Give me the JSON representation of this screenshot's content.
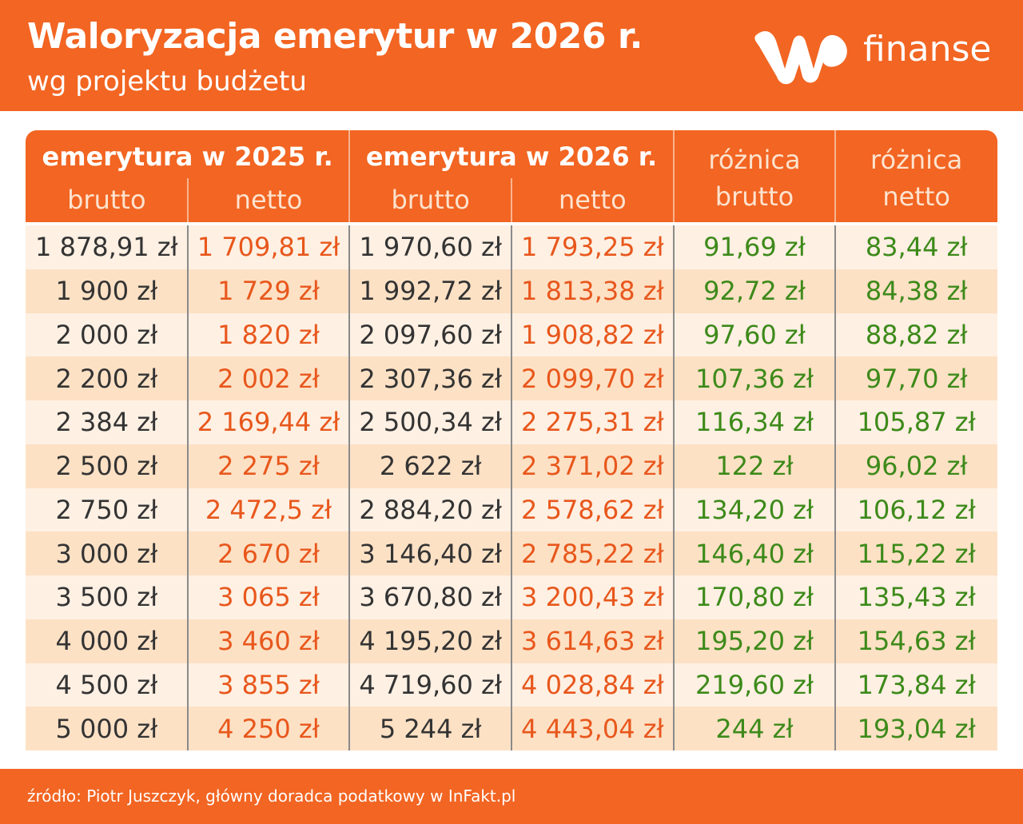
{
  "header": {
    "title": "Waloryzacja emerytur w 2026 r.",
    "subtitle": "wg projektu budżetu",
    "brand": "finanse"
  },
  "table": {
    "groups": [
      "emerytura w 2025 r.",
      "emerytura w 2026 r."
    ],
    "subheaders": [
      "brutto",
      "netto",
      "brutto",
      "netto"
    ],
    "diff_headers": [
      [
        "różnica",
        "brutto"
      ],
      [
        "różnica",
        "netto"
      ]
    ],
    "rows": [
      [
        "1 878,91 zł",
        "1 709,81 zł",
        "1 970,60 zł",
        "1 793,25 zł",
        "91,69 zł",
        "83,44 zł"
      ],
      [
        "1 900 zł",
        "1 729 zł",
        "1 992,72 zł",
        "1 813,38 zł",
        "92,72 zł",
        "84,38 zł"
      ],
      [
        "2 000 zł",
        "1 820 zł",
        "2 097,60 zł",
        "1 908,82 zł",
        "97,60 zł",
        "88,82 zł"
      ],
      [
        "2 200 zł",
        "2 002 zł",
        "2 307,36 zł",
        "2 099,70 zł",
        "107,36 zł",
        "97,70 zł"
      ],
      [
        "2 384 zł",
        "2 169,44 zł",
        "2 500,34 zł",
        "2 275,31 zł",
        "116,34 zł",
        "105,87 zł"
      ],
      [
        "2 500 zł",
        "2 275 zł",
        "2 622 zł",
        "2 371,02 zł",
        "122 zł",
        "96,02 zł"
      ],
      [
        "2 750 zł",
        "2 472,5 zł",
        "2 884,20 zł",
        "2 578,62 zł",
        "134,20 zł",
        "106,12 zł"
      ],
      [
        "3 000 zł",
        "2 670 zł",
        "3 146,40 zł",
        "2 785,22 zł",
        "146,40 zł",
        "115,22 zł"
      ],
      [
        "3 500 zł",
        "3 065 zł",
        "3 670,80 zł",
        "3 200,43 zł",
        "170,80 zł",
        "135,43 zł"
      ],
      [
        "4 000 zł",
        "3 460 zł",
        "4 195,20 zł",
        "3 614,63 zł",
        "195,20 zł",
        "154,63 zł"
      ],
      [
        "4 500 zł",
        "3 855 zł",
        "4 719,60 zł",
        "4 028,84 zł",
        "219,60 zł",
        "173,84 zł"
      ],
      [
        "5 000 zł",
        "4 250 zł",
        "5 244 zł",
        "4 443,04 zł",
        "244 zł",
        "193,04 zł"
      ]
    ]
  },
  "source": "źródło: Piotr Juszczyk, główny doradca podatkowy w InFakt.pl"
}
